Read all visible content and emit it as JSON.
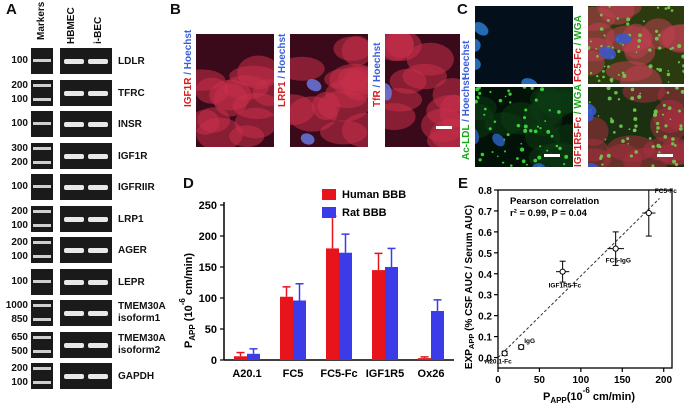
{
  "panels": {
    "a": "A",
    "b": "B",
    "c": "C",
    "d": "D",
    "e": "E"
  },
  "gel": {
    "headers": [
      "Markers",
      "HBMEC",
      "i-BEC"
    ],
    "rows": [
      {
        "mw": [
          "100"
        ],
        "gene": "LDLR"
      },
      {
        "mw": [
          "200",
          "100"
        ],
        "gene": "TFRC"
      },
      {
        "mw": [
          "100"
        ],
        "gene": "INSR"
      },
      {
        "mw": [
          "300",
          "200"
        ],
        "gene": "IGF1R"
      },
      {
        "mw": [
          "100"
        ],
        "gene": "IGFRIIR"
      },
      {
        "mw": [
          "200",
          "100"
        ],
        "gene": "LRP1"
      },
      {
        "mw": [
          "200",
          "100"
        ],
        "gene": "AGER"
      },
      {
        "mw": [
          "100"
        ],
        "gene": "LEPR"
      },
      {
        "mw": [
          "1000",
          "850"
        ],
        "gene": "TMEM30A",
        "gene2": "isoform1"
      },
      {
        "mw": [
          "650",
          "500"
        ],
        "gene": "TMEM30A",
        "gene2": "isoform2"
      },
      {
        "mw": [
          "200",
          "100"
        ],
        "gene": "GAPDH"
      }
    ]
  },
  "panel_b": {
    "labels": [
      {
        "red": "IGF1R",
        "sep": " / ",
        "blue": "Hoechst"
      },
      {
        "red": "LRP1",
        "sep": " / ",
        "blue": "Hoechst"
      },
      {
        "red": "TfR",
        "sep": " / ",
        "blue": "Hoechst"
      }
    ]
  },
  "panel_c": {
    "labels": [
      {
        "a": "Hoechst",
        "sep": "",
        "b": ""
      },
      {
        "a": "Ac-LDL",
        "sep": " / ",
        "b": "Hoechst"
      },
      {
        "a": "FC5-Fc",
        "sep": " / ",
        "b": "WGA"
      },
      {
        "a": "IGF1R5-Fc",
        "sep": " / ",
        "b": "WGA"
      }
    ]
  },
  "colors": {
    "human": "#e8141c",
    "rat": "#3b3be8",
    "red_label": "#d42020",
    "blue_label": "#3a5fd9",
    "green_label": "#1aa51a"
  },
  "chart_data": [
    {
      "type": "bar",
      "panel": "D",
      "categories": [
        "A20.1",
        "FC5",
        "FC5-Fc",
        "IGF1R5",
        "Ox26"
      ],
      "series": [
        {
          "name": "Human BBB",
          "values": [
            6,
            102,
            180,
            145,
            3
          ],
          "errors": [
            6,
            16,
            52,
            27,
            2
          ]
        },
        {
          "name": "Rat BBB",
          "values": [
            10,
            96,
            173,
            150,
            79
          ],
          "errors": [
            8,
            27,
            30,
            30,
            18
          ]
        }
      ],
      "ylabel_main": "P",
      "ylabel_sub": "APP",
      "ylabel_rest": " (10",
      "ylabel_sup": "-6",
      "ylabel_end": " cm/min)",
      "ylim": [
        0,
        250
      ],
      "yticks": [
        "0",
        "50",
        "100",
        "150",
        "200",
        "250"
      ],
      "legend": "top-right"
    },
    {
      "type": "scatter",
      "panel": "E",
      "annotation1": "Pearson correlation",
      "annotation2": "r² = 0.99, P = 0.04",
      "points": [
        {
          "label": "A20.1-Fc",
          "x": 8,
          "y": 0.02,
          "xerr": 3,
          "yerr": 0.01
        },
        {
          "label": "IgG",
          "x": 28,
          "y": 0.05,
          "xerr": 3,
          "yerr": 0.01
        },
        {
          "label": "IGF1R5-Fc",
          "x": 78,
          "y": 0.41,
          "xerr": 8,
          "yerr": 0.05
        },
        {
          "label": "FC5-IgG",
          "x": 142,
          "y": 0.52,
          "xerr": 10,
          "yerr": 0.08
        },
        {
          "label": "FC5-Fc",
          "x": 182,
          "y": 0.69,
          "xerr": 8,
          "yerr": 0.11
        }
      ],
      "fit_line": [
        [
          0,
          0.0
        ],
        [
          195,
          0.76
        ]
      ],
      "xlabel_main": "P",
      "xlabel_sub": "APP",
      "xlabel_rest": "(10",
      "xlabel_sup": "-6",
      "xlabel_end": " cm/min)",
      "ylabel_main": "EXP",
      "ylabel_sub": "APP",
      "ylabel_rest": " (% CSF AUC / Serum AUC)",
      "xlim": [
        0,
        210
      ],
      "ylim": [
        -0.05,
        0.8
      ],
      "xticks": [
        "0",
        "50",
        "100",
        "150",
        "200"
      ],
      "yticks": [
        "0.0",
        "0.1",
        "0.2",
        "0.3",
        "0.4",
        "0.5",
        "0.6",
        "0.7",
        "0.8"
      ]
    }
  ]
}
